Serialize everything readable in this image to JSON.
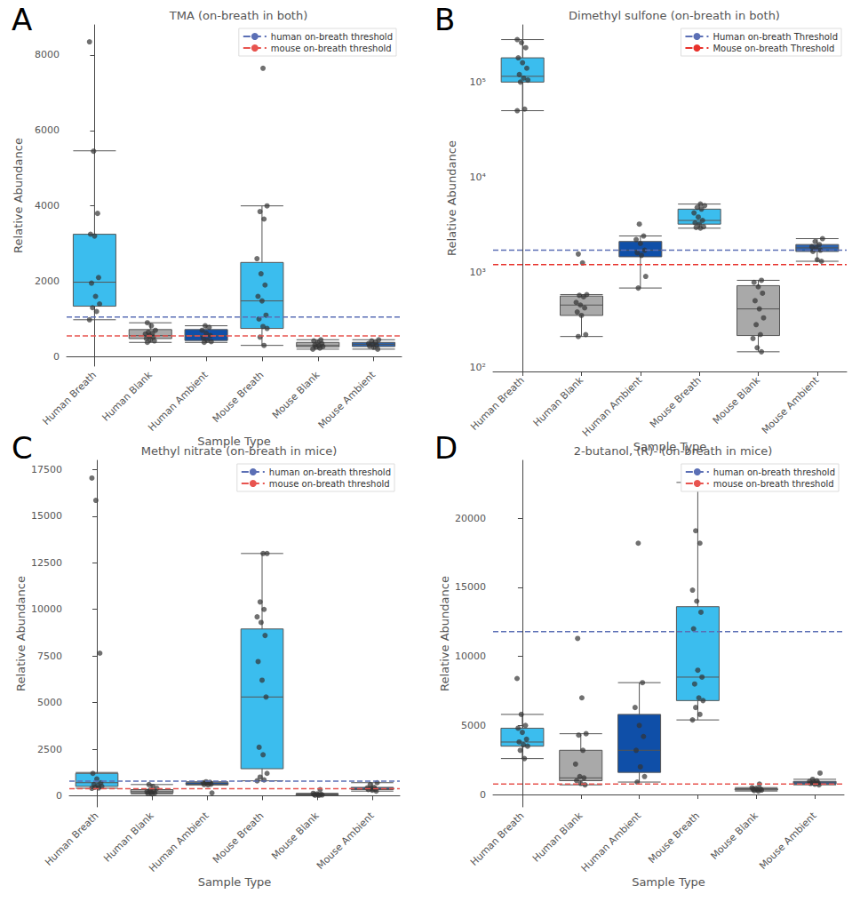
{
  "chart_data": [
    {
      "type": "boxplot",
      "panel": "A",
      "title": "TMA (on-breath in both)",
      "x_label": "Sample Type",
      "y_label": "Relative Abundance",
      "categories": [
        "Human Breath",
        "Human Blank",
        "Human Ambient",
        "Mouse Breath",
        "Mouse Blank",
        "Mouse Ambient"
      ],
      "colors": [
        "#3bbdee",
        "#a9a9a9",
        "#0f4fa8",
        "#3bbdee",
        "#a9a9a9",
        "#2b63b0"
      ],
      "boxes": [
        [
          980,
          1340,
          1976,
          3247,
          5460
        ],
        [
          380,
          480,
          560,
          720,
          900
        ],
        [
          380,
          430,
          560,
          720,
          820
        ],
        [
          300,
          750,
          1480,
          2500,
          4000
        ],
        [
          200,
          260,
          300,
          380,
          450
        ],
        [
          200,
          270,
          330,
          380,
          450
        ]
      ],
      "points": [
        [
          8350,
          5450,
          3800,
          3250,
          3200,
          2100,
          1950,
          1600,
          1400,
          1300,
          1200,
          980
        ],
        [
          900,
          820,
          700,
          650,
          620,
          600,
          560,
          520,
          480,
          450,
          420,
          380
        ],
        [
          820,
          780,
          700,
          620,
          560,
          500,
          440,
          400,
          380
        ],
        [
          7650,
          4000,
          3850,
          3650,
          2600,
          2200,
          1900,
          1600,
          1480,
          1100,
          1000,
          800,
          750,
          520,
          300
        ],
        [
          450,
          420,
          380,
          350,
          300,
          290,
          270,
          260,
          230,
          200
        ],
        [
          450,
          420,
          380,
          350,
          330,
          300,
          280,
          250,
          200
        ]
      ],
      "thresholds": [
        {
          "name": "human on-breath threshold",
          "color": "#5b6fb5",
          "value": 1050,
          "line_style": "dashed"
        },
        {
          "name": "mouse on-breath threshold",
          "color": "#e8544f",
          "value": 550,
          "line_style": "dashed"
        }
      ],
      "ylim": [
        -250,
        8800
      ],
      "yticks": [
        0,
        2000,
        4000,
        6000,
        8000
      ],
      "marker": "circle",
      "grid": false,
      "legend": "upper right"
    },
    {
      "type": "boxplot",
      "panel": "B",
      "title": "Dimethyl sulfone (on-breath in both)",
      "x_label": "Sample Type",
      "y_label": "Relative Abundance",
      "categories": [
        "Human Breath",
        "Human Blank",
        "Human Ambient",
        "Mouse Breath",
        "Mouse Blank",
        "Mouse Ambient"
      ],
      "colors": [
        "#3bbdee",
        "#a9a9a9",
        "#0f4fa8",
        "#3bbdee",
        "#a9a9a9",
        "#2b63b0"
      ],
      "boxes": [
        [
          50000,
          100000,
          115000,
          180000,
          280000
        ],
        [
          210,
          350,
          450,
          560,
          580
        ],
        [
          680,
          1450,
          1700,
          2100,
          2400
        ],
        [
          2900,
          3200,
          3500,
          4600,
          5200
        ],
        [
          145,
          215,
          410,
          720,
          820
        ],
        [
          1300,
          1650,
          1800,
          1950,
          2250
        ]
      ],
      "points": [
        [
          280000,
          260000,
          230000,
          180000,
          160000,
          140000,
          120000,
          110000,
          105000,
          100000,
          52000,
          50000
        ],
        [
          1550,
          1250,
          580,
          570,
          550,
          480,
          450,
          420,
          380,
          350,
          220,
          210
        ],
        [
          3200,
          2400,
          2200,
          2000,
          1700,
          1600,
          1500,
          900,
          680
        ],
        [
          5200,
          5000,
          4800,
          4600,
          4200,
          3800,
          3500,
          3300,
          3200,
          3000,
          2950,
          2900
        ],
        [
          820,
          780,
          700,
          600,
          500,
          410,
          330,
          280,
          220,
          200,
          160,
          145
        ],
        [
          2250,
          2100,
          1950,
          1850,
          1800,
          1700,
          1650,
          1350,
          1300
        ]
      ],
      "thresholds": [
        {
          "name": "Human on-breath Threshold",
          "color": "#5b6fb5",
          "value": 1700,
          "line_style": "dashed"
        },
        {
          "name": "Mouse on-breath Threshold",
          "color": "#e8322c",
          "value": 1200,
          "line_style": "dashed"
        }
      ],
      "log": "y",
      "ylim": [
        90,
        400000
      ],
      "yticks": [
        {
          "value": 100,
          "label": "10²"
        },
        {
          "value": 1000,
          "label": "10³"
        },
        {
          "value": 10000,
          "label": "10⁴"
        },
        {
          "value": 100000,
          "label": "10⁵"
        }
      ],
      "marker": "circle",
      "grid": false,
      "legend": "upper right"
    },
    {
      "type": "boxplot",
      "panel": "C",
      "title": "Methyl nitrate (on-breath in mice)",
      "x_label": "Sample Type",
      "y_label": "Relative Abundance",
      "categories": [
        "Human Breath",
        "Human Blank",
        "Human Ambient",
        "Mouse Breath",
        "Mouse Blank",
        "Mouse Ambient"
      ],
      "colors": [
        "#3bbdee",
        "#a9a9a9",
        "#0f4fa8",
        "#3bbdee",
        "#a9a9a9",
        "#2b63b0"
      ],
      "boxes": [
        [
          400,
          500,
          700,
          1200,
          1250
        ],
        [
          100,
          150,
          220,
          330,
          600
        ],
        [
          580,
          600,
          620,
          700,
          750
        ],
        [
          800,
          1450,
          5300,
          8950,
          13000
        ],
        [
          20,
          40,
          60,
          90,
          130
        ],
        [
          250,
          330,
          400,
          450,
          700
        ]
      ],
      "points": [
        [
          17050,
          15850,
          7650,
          1200,
          900,
          700,
          600,
          550,
          500,
          450,
          420,
          400
        ],
        [
          600,
          500,
          400,
          300,
          250,
          220,
          180,
          150,
          120,
          100
        ],
        [
          750,
          720,
          700,
          680,
          620,
          600,
          580,
          150
        ],
        [
          13000,
          13000,
          10400,
          10000,
          9600,
          9300,
          8600,
          7200,
          6200,
          5300,
          2600,
          2200,
          1200,
          1000,
          850,
          800
        ],
        [
          330,
          130,
          100,
          80,
          60,
          50,
          40,
          30,
          20
        ],
        [
          700,
          600,
          450,
          420,
          400,
          350,
          330,
          300,
          250
        ]
      ],
      "thresholds": [
        {
          "name": "human on-breath threshold",
          "color": "#5b6fb5",
          "value": 780,
          "line_style": "dashed"
        },
        {
          "name": "mouse on-breath threshold",
          "color": "#e8544f",
          "value": 380,
          "line_style": "dashed"
        }
      ],
      "ylim": [
        -600,
        18000
      ],
      "yticks": [
        0,
        2500,
        5000,
        7500,
        10000,
        12500,
        15000,
        17500
      ],
      "marker": "circle",
      "grid": false,
      "legend": "upper right"
    },
    {
      "type": "boxplot",
      "panel": "D",
      "title": "2-butanol, (R)- (on-breath in mice)",
      "x_label": "Sample Type",
      "y_label": "Relative Abundance",
      "categories": [
        "Human Breath",
        "Human Blank",
        "Human Ambient",
        "Mouse Breath",
        "Mouse Blank",
        "Mouse Ambient"
      ],
      "colors": [
        "#3bbdee",
        "#a9a9a9",
        "#0f4fa8",
        "#3bbdee",
        "#a9a9a9",
        "#2b63b0"
      ],
      "boxes": [
        [
          2600,
          3500,
          3800,
          4800,
          5800
        ],
        [
          700,
          1000,
          1200,
          3200,
          4400
        ],
        [
          900,
          1600,
          3200,
          5800,
          8100
        ],
        [
          5400,
          6800,
          8500,
          13600,
          22600
        ],
        [
          250,
          320,
          380,
          420,
          500
        ],
        [
          700,
          750,
          850,
          950,
          1100
        ]
      ],
      "points": [
        [
          8400,
          5800,
          5000,
          4800,
          4500,
          4000,
          3800,
          3600,
          3500,
          3200,
          2600
        ],
        [
          11300,
          7000,
          4400,
          4300,
          3200,
          2200,
          1300,
          1200,
          1000,
          800,
          700
        ],
        [
          18200,
          8100,
          6300,
          5000,
          4200,
          3200,
          2000,
          1300,
          900
        ],
        [
          22600,
          22600,
          19100,
          18200,
          14800,
          14000,
          13200,
          12000,
          9000,
          8500,
          8000,
          7000,
          6800,
          6300,
          5800,
          5400
        ],
        [
          750,
          500,
          450,
          400,
          380,
          350,
          320,
          280,
          250
        ],
        [
          1550,
          1100,
          1000,
          950,
          900,
          850,
          800,
          750,
          700
        ]
      ],
      "thresholds": [
        {
          "name": "human on-breath threshold",
          "color": "#5b6fb5",
          "value": 11800,
          "line_style": "dashed"
        },
        {
          "name": "mouse on-breath threshold",
          "color": "#e8544f",
          "value": 750,
          "line_style": "dashed"
        }
      ],
      "ylim": [
        -900,
        24200
      ],
      "yticks": [
        0,
        5000,
        10000,
        15000,
        20000
      ],
      "marker": "circle",
      "grid": false,
      "legend": "upper right"
    }
  ]
}
